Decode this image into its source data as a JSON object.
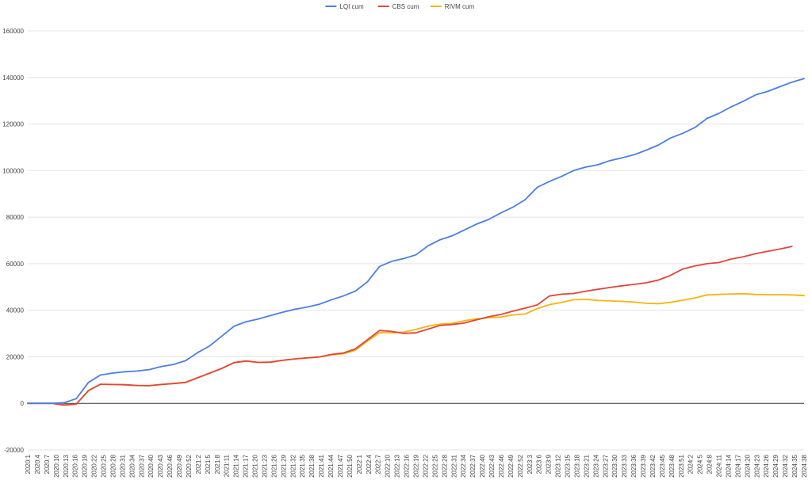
{
  "chart_data": {
    "type": "line",
    "legend_position": "top",
    "grid": true,
    "ylim": [
      -20000,
      160000
    ],
    "y_ticks": [
      -20000,
      0,
      20000,
      40000,
      60000,
      80000,
      100000,
      120000,
      140000,
      160000
    ],
    "y_tick_labels": [
      "-20000",
      "0",
      "20000",
      "40000",
      "60000",
      "80000",
      "100000",
      "120000",
      "140000",
      "160000"
    ],
    "x_tick_labels": [
      "2020:1",
      "2020:4",
      "2020:7",
      "2020:10",
      "2020:13",
      "2020:16",
      "2020:19",
      "2020:22",
      "2020:25",
      "2020:28",
      "2020:31",
      "2020:34",
      "2020:37",
      "2020:40",
      "2020:43",
      "2020:46",
      "2020:49",
      "2020:52",
      "2021:2",
      "2021:5",
      "2021:8",
      "2021:11",
      "2021:14",
      "2021:17",
      "2021:20",
      "2021:23",
      "2021:26",
      "2021:29",
      "2021:32",
      "2021:35",
      "2021:38",
      "2021:41",
      "2021:44",
      "2021:47",
      "2021:50",
      "2022:1",
      "2022:4",
      "2022:7",
      "2022:10",
      "2022:13",
      "2022:16",
      "2022:19",
      "2022:22",
      "2022:25",
      "2022:28",
      "2022:31",
      "2022:34",
      "2022:37",
      "2022:40",
      "2022:43",
      "2022:46",
      "2022:49",
      "2022:52",
      "2023:3",
      "2023:6",
      "2023:9",
      "2023:12",
      "2023:15",
      "2023:18",
      "2023:21",
      "2023:24",
      "2023:27",
      "2023:30",
      "2023:33",
      "2023:36",
      "2023:39",
      "2023:42",
      "2023:45",
      "2023:48",
      "2023:51",
      "2024:2",
      "2024:5",
      "2024:8",
      "2024:11",
      "2024:14",
      "2024:17",
      "2024:20",
      "2024:23",
      "2024:26",
      "2024:29",
      "2024:32",
      "2024:35",
      "2024:38"
    ],
    "series": [
      {
        "name": "LQI cum",
        "color": "#4a7fe5",
        "values": [
          0,
          0,
          0,
          300,
          2000,
          9000,
          12200,
          13000,
          13600,
          13900,
          14500,
          15800,
          16700,
          18300,
          21800,
          24700,
          28900,
          33100,
          35100,
          36200,
          37700,
          39100,
          40400,
          41300,
          42500,
          44400,
          46100,
          48200,
          52200,
          58800,
          61000,
          62200,
          63800,
          67700,
          70300,
          72000,
          74500,
          77000,
          79000,
          81800,
          84300,
          87500,
          92800,
          95300,
          97500,
          100000,
          101500,
          102500,
          104300,
          105500,
          106800,
          108800,
          111000,
          114000,
          116000,
          118500,
          122400,
          124600,
          127400,
          129800,
          132500,
          134000,
          136000,
          138000,
          139500
        ]
      },
      {
        "name": "CBS cum",
        "color": "#e2453b",
        "values": [
          0,
          0,
          0,
          -700,
          -300,
          5500,
          8200,
          8100,
          8000,
          7700,
          7600,
          8100,
          8500,
          9000,
          11000,
          13000,
          15000,
          17500,
          18200,
          17600,
          17700,
          18500,
          19100,
          19500,
          19900,
          21000,
          21600,
          23400,
          27300,
          31300,
          30900,
          30100,
          30300,
          31900,
          33500,
          33900,
          34500,
          35900,
          37200,
          38200,
          39600,
          40900,
          42300,
          46100,
          46900,
          47200,
          48200,
          49000,
          49800,
          50500,
          51100,
          51800,
          53000,
          55000,
          57700,
          59000,
          60000,
          60500,
          62000,
          63000,
          64300,
          65300,
          66300,
          67400
        ]
      },
      {
        "name": "RIVM cum",
        "color": "#f6b40e",
        "values": [
          0,
          0,
          0,
          -700,
          -300,
          5500,
          8200,
          8100,
          8000,
          7700,
          7600,
          8100,
          8500,
          9000,
          11000,
          13000,
          15000,
          17500,
          18200,
          17600,
          17700,
          18500,
          19100,
          19500,
          19900,
          20800,
          21300,
          22800,
          26700,
          30400,
          30300,
          30600,
          31800,
          33200,
          34000,
          34400,
          35500,
          36300,
          36800,
          37100,
          38000,
          38400,
          40700,
          42400,
          43400,
          44500,
          44700,
          44200,
          44000,
          43800,
          43500,
          43000,
          42800,
          43400,
          44300,
          45300,
          46600,
          46800,
          47000,
          47100,
          46800,
          46700,
          46700,
          46600,
          46300
        ]
      }
    ]
  }
}
